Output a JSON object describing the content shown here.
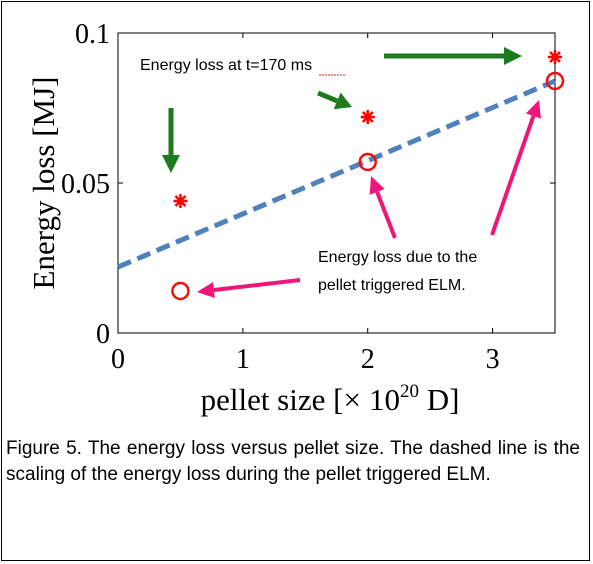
{
  "chart_data": {
    "type": "scatter",
    "ylabel": "Energy loss [MJ]",
    "xlabel_prefix": "pellet size [",
    "xlabel_times": "×",
    "xlabel_base": "10",
    "xlabel_exp": "20",
    "xlabel_suffix": " D]",
    "xlim": [
      0,
      3.5
    ],
    "ylim": [
      0,
      0.1
    ],
    "x_ticks": [
      0,
      1,
      2,
      3
    ],
    "x_tick_labels": [
      "0",
      "1",
      "2",
      "3"
    ],
    "y_ticks": [
      0,
      0.05,
      0.1
    ],
    "y_tick_labels": [
      "0",
      "0.05",
      "0.1"
    ],
    "grid": false,
    "series": [
      {
        "marker": "asterisk",
        "color": "#ff0000",
        "x": [
          0.5,
          2.0,
          3.5
        ],
        "y": [
          0.044,
          0.072,
          0.092
        ]
      },
      {
        "marker": "circle",
        "color": "#ee1111",
        "x": [
          0.5,
          2.0,
          3.5
        ],
        "y": [
          0.014,
          0.057,
          0.084
        ]
      }
    ],
    "fit_line": {
      "style": "dashed",
      "color": "#4f81bd",
      "x": [
        0,
        3.5
      ],
      "y": [
        0.022,
        0.084
      ]
    },
    "annotations": [
      {
        "text": "Energy loss at t=170 ms",
        "color": "#000000"
      },
      {
        "text_lines": [
          "Energy loss due to the",
          "pellet triggered ELM."
        ],
        "color": "#000000"
      }
    ],
    "arrow_colors": {
      "green": "#1e7a1e",
      "pink": "#f0157a"
    }
  },
  "caption": "Figure 5. The energy loss versus pellet size. The dashed line is the scaling of the energy loss during the pellet triggered ELM."
}
